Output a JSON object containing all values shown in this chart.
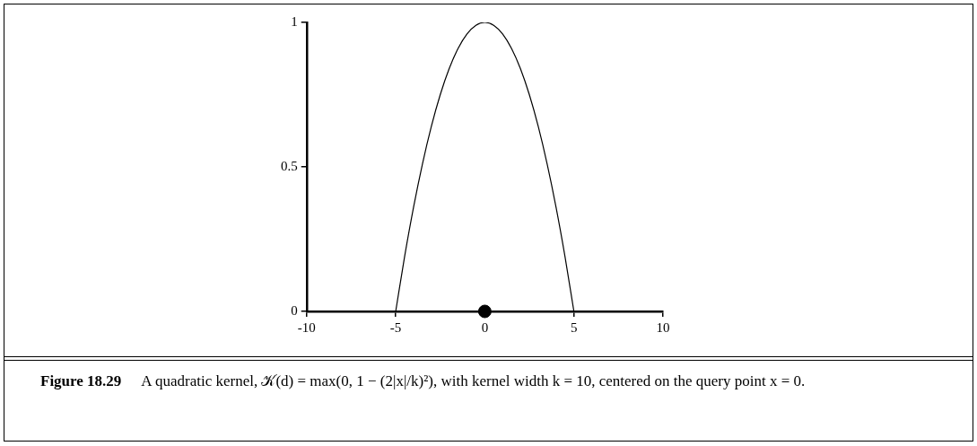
{
  "chart_data": {
    "type": "line",
    "xlim": [
      -10,
      10
    ],
    "xticks": [
      -10,
      -5,
      0,
      5,
      10
    ],
    "ylim": [
      0,
      1
    ],
    "yticks": [
      0,
      0.5,
      1
    ],
    "grid": false,
    "legend": false,
    "series": [
      {
        "color": "#000000",
        "marker": "none",
        "line_style": "solid",
        "x": [
          -5,
          -4.5,
          -4,
          -3.5,
          -3,
          -2.5,
          -2,
          -1.5,
          -1,
          -0.5,
          0,
          0.5,
          1,
          1.5,
          2,
          2.5,
          3,
          3.5,
          4,
          4.5,
          5
        ],
        "values": [
          0,
          0.19,
          0.36,
          0.51,
          0.64,
          0.75,
          0.84,
          0.91,
          0.96,
          0.99,
          1,
          0.99,
          0.96,
          0.91,
          0.84,
          0.75,
          0.64,
          0.51,
          0.36,
          0.19,
          0
        ]
      },
      {
        "type": "scatter",
        "color": "#000000",
        "marker": "circle",
        "x": [
          0
        ],
        "values": [
          0
        ]
      }
    ],
    "annotations": [
      "Figure 18.29",
      "A quadratic kernel, 𝒦(d) = max(0, 1 − (2|x|/k)²), with kernel width k = 10, centered on the query point x = 0."
    ]
  }
}
